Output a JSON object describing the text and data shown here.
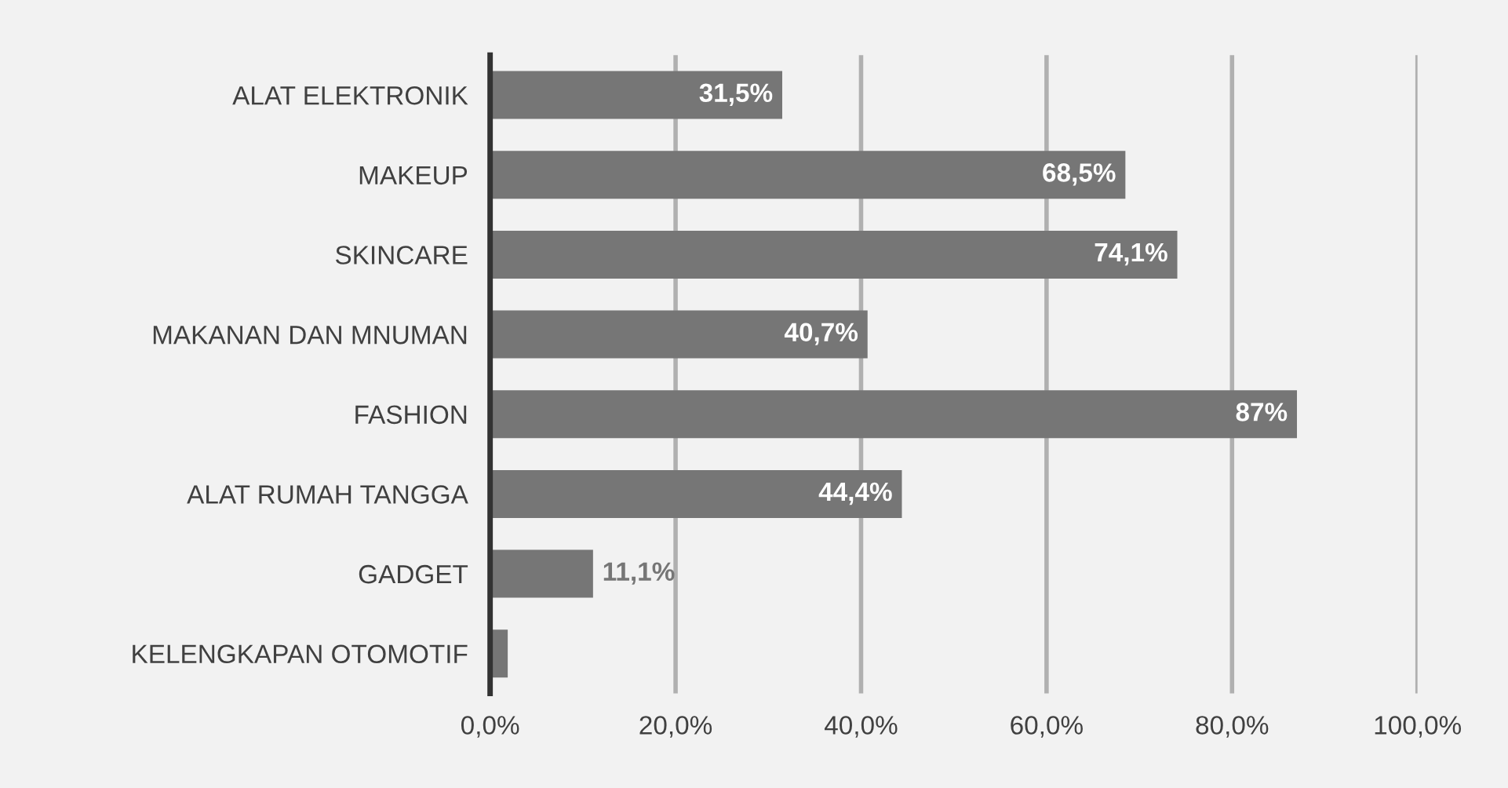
{
  "chart_data": {
    "type": "bar",
    "orientation": "horizontal",
    "categories": [
      "ALAT ELEKTRONIK",
      "MAKEUP",
      "SKINCARE",
      "MAKANAN DAN MNUMAN",
      "FASHION",
      "ALAT RUMAH TANGGA",
      "GADGET",
      "KELENGKAPAN OTOMOTIF"
    ],
    "values": [
      31.5,
      68.5,
      74.1,
      40.7,
      87,
      44.4,
      11.1,
      1.9
    ],
    "value_labels": [
      "31,5%",
      "68,5%",
      "74,1%",
      "40,7%",
      "87%",
      "44,4%",
      "11,1%",
      null
    ],
    "color": "#767676",
    "xlim": [
      0,
      100
    ],
    "xticks": [
      {
        "value": 0,
        "label": "0,0%"
      },
      {
        "value": 20,
        "label": "20,0%"
      },
      {
        "value": 40,
        "label": "40,0%"
      },
      {
        "value": 60,
        "label": "60,0%"
      },
      {
        "value": 80,
        "label": "80,0%"
      },
      {
        "value": 100,
        "label": "100,0%"
      }
    ],
    "grid": "x"
  }
}
